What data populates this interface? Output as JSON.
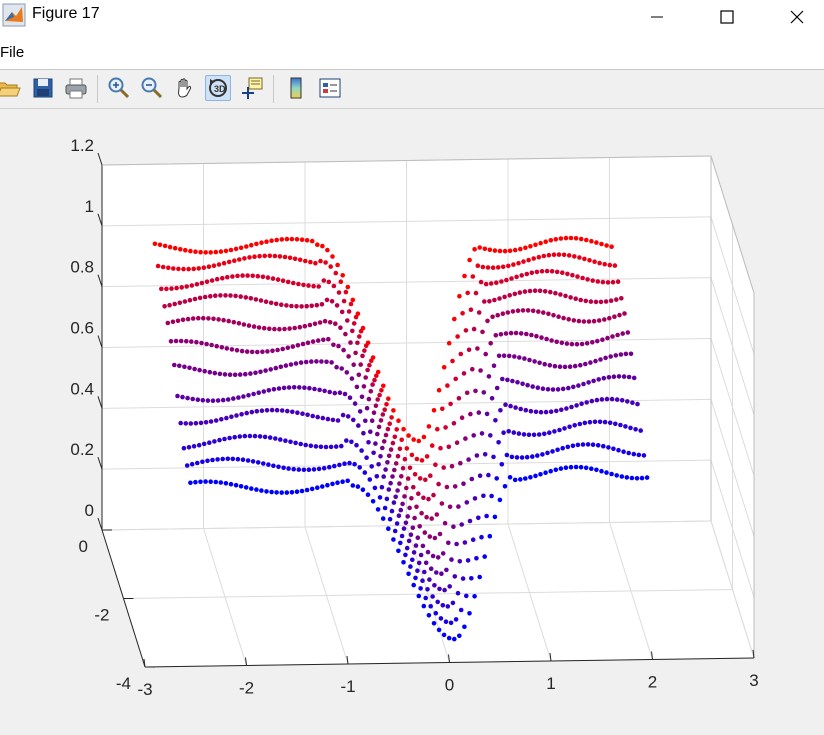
{
  "window": {
    "title": "Figure 17",
    "icon": "matlab-logo-icon"
  },
  "window_controls": {
    "minimize_icon": "minimize-icon",
    "maximize_icon": "maximize-icon",
    "close_icon": "close-icon"
  },
  "menu": {
    "file_label": "File"
  },
  "toolbar": {
    "buttons": [
      {
        "name": "open-button",
        "icon": "folder-open-icon"
      },
      {
        "name": "save-button",
        "icon": "floppy-disk-icon"
      },
      {
        "name": "print-button",
        "icon": "printer-icon"
      },
      {
        "name": "zoom-in-button",
        "icon": "zoom-in-icon"
      },
      {
        "name": "zoom-out-button",
        "icon": "zoom-out-icon"
      },
      {
        "name": "pan-button",
        "icon": "hand-icon"
      },
      {
        "name": "rotate-3d-button",
        "icon": "rotate-3d-icon",
        "active": true
      },
      {
        "name": "data-cursor-button",
        "icon": "data-cursor-icon"
      },
      {
        "name": "colorbar-button",
        "icon": "colorbar-icon"
      },
      {
        "name": "legend-button",
        "icon": "legend-icon"
      }
    ]
  },
  "chart_data": {
    "type": "scatter",
    "title": "",
    "xlabel": "",
    "ylabel": "",
    "zlabel": "",
    "x_ticks": [
      "-3",
      "-2",
      "-1",
      "0",
      "1",
      "2",
      "3"
    ],
    "y_ticks": [
      "0",
      "-2",
      "-4"
    ],
    "z_ticks": [
      "0",
      "0.2",
      "0.4",
      "0.6",
      "0.8",
      "1",
      "1.2"
    ],
    "xlim": [
      -3,
      3
    ],
    "ylim": [
      -4,
      0
    ],
    "zlim": [
      0,
      1.2
    ],
    "grid": true,
    "color_gradient": {
      "first_series": "#ff0000",
      "last_series": "#0000ff"
    },
    "series_count": 12,
    "shape": {
      "x_range": [
        -2.5,
        2.0
      ],
      "dip_center_x": 0.1,
      "y_of_series": [
        -0.2,
        -0.5,
        -0.8,
        -1.1,
        -1.4,
        -1.7,
        -2.0,
        -2.3,
        -2.6,
        -2.9,
        -3.2,
        -3.5
      ],
      "left_plateau_z": [
        0.95,
        0.93,
        0.9,
        0.87,
        0.83,
        0.79,
        0.75,
        0.7,
        0.66,
        0.61,
        0.57,
        0.53
      ],
      "right_plateau_z": [
        0.94,
        0.92,
        0.9,
        0.87,
        0.84,
        0.8,
        0.76,
        0.72,
        0.68,
        0.64,
        0.6,
        0.56
      ],
      "min_z": [
        0.3,
        0.27,
        0.24,
        0.21,
        0.18,
        0.15,
        0.12,
        0.1,
        0.08,
        0.06,
        0.04,
        0.02
      ]
    }
  }
}
